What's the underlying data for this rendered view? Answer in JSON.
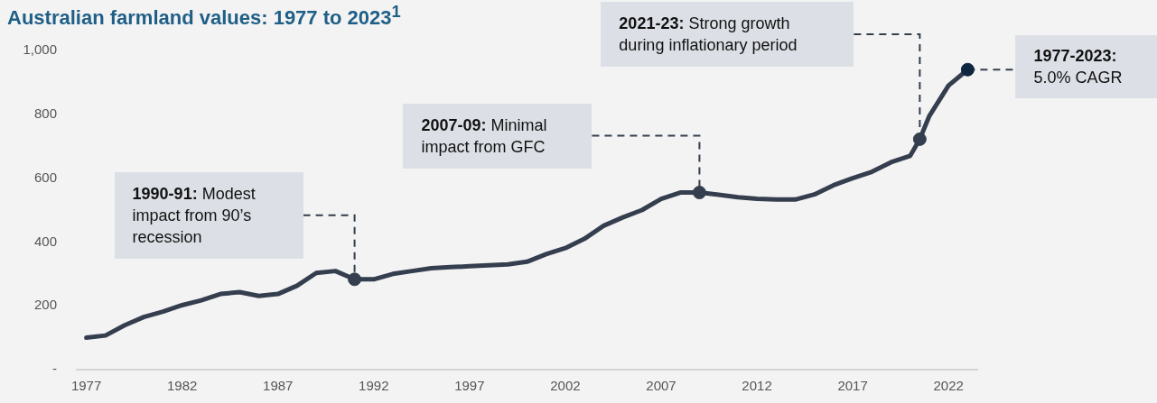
{
  "chart_data": {
    "type": "line",
    "title": "Australian farmland values: 1977 to 2023$^{1}$",
    "xlim": [
      1976.5,
      2023.5
    ],
    "xticks": [
      1977,
      1982,
      1987,
      1992,
      1997,
      2002,
      2007,
      2012,
      2017,
      2022
    ],
    "ylim": [
      0,
      1000
    ],
    "yticks": [
      {
        "value": 0,
        "label": "-"
      },
      200,
      400,
      600,
      800,
      {
        "value": 1000,
        "label": "1,000"
      }
    ],
    "grid": false,
    "legend": false,
    "series": [
      {
        "type": "line",
        "color": "#343e4e",
        "line_style": "solid",
        "marker": "none",
        "x": [
          1977,
          1978,
          1979,
          1980,
          1981,
          1982,
          1983,
          1984,
          1985,
          1986,
          1987,
          1988,
          1989,
          1990,
          1991,
          1992,
          1993,
          1994,
          1995,
          1996,
          1997,
          1998,
          1999,
          2000,
          2001,
          2002,
          2003,
          2004,
          2005,
          2006,
          2007,
          2008,
          2009,
          2010,
          2011,
          2012,
          2013,
          2014,
          2015,
          2016,
          2017,
          2018,
          2019,
          2020,
          2020.5,
          2021,
          2022,
          2023
        ],
        "values": [
          100,
          107,
          139,
          165,
          182,
          202,
          217,
          237,
          243,
          231,
          237,
          263,
          303,
          309,
          283,
          283,
          300,
          309,
          318,
          321,
          324,
          327,
          330,
          338,
          362,
          381,
          410,
          451,
          477,
          500,
          535,
          555,
          555,
          548,
          540,
          535,
          533,
          533,
          549,
          578,
          600,
          620,
          650,
          670,
          722,
          795,
          890,
          940
        ]
      },
      {
        "type": "scatter",
        "marker": "circle",
        "x": [
          1991,
          2009,
          2020.5,
          2023
        ],
        "values": [
          283,
          555,
          722,
          940
        ],
        "colors": [
          "#343e4e",
          "#343e4e",
          "#343e4e",
          "#0e2640"
        ]
      }
    ],
    "annotations": [
      "1990-91: Modest impact from 90’s recession",
      "2007-09: Minimal impact from GFC",
      "2021-23: Strong growth during inflationary period",
      "1977-2023: 5.0% CAGR"
    ]
  }
}
